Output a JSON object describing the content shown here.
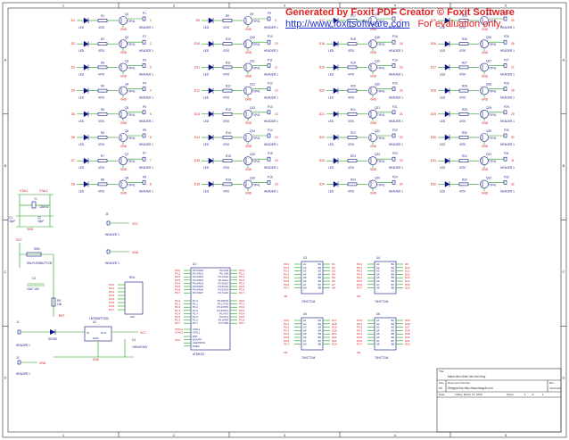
{
  "watermark": {
    "line1": "Generated by Foxit PDF Creator © Foxit Software",
    "line2_url": "http://www.foxitsoftware.com",
    "line2_note": "For evaluation only."
  },
  "grid": {
    "columns": [
      {
        "rows": [
          {
            "q": "Q1",
            "r": "R1",
            "d": "D1",
            "p": "P1",
            "val": "4700",
            "led": "LED",
            "tr": "TIP41",
            "hdr": "HEADER 1",
            "gnd": "GND"
          },
          {
            "q": "Q2",
            "r": "R2",
            "d": "D2",
            "p": "P2",
            "val": "4700",
            "led": "LED",
            "tr": "TIP41",
            "hdr": "HEADER 1",
            "gnd": "GND"
          },
          {
            "q": "Q3",
            "r": "R3",
            "d": "D3",
            "p": "P3",
            "val": "4700",
            "led": "LED",
            "tr": "TIP41",
            "hdr": "HEADER 1",
            "gnd": "GND"
          },
          {
            "q": "Q4",
            "r": "R4",
            "d": "D4",
            "p": "P4",
            "val": "4700",
            "led": "LED",
            "tr": "TIP41",
            "hdr": "HEADER 1",
            "gnd": "GND"
          },
          {
            "q": "Q5",
            "r": "R5",
            "d": "D5",
            "p": "P5",
            "val": "4700",
            "led": "LED",
            "tr": "TIP41",
            "hdr": "HEADER 1",
            "gnd": "GND"
          },
          {
            "q": "Q6",
            "r": "R6",
            "d": "D6",
            "p": "P6",
            "val": "4700",
            "led": "LED",
            "tr": "TIP41",
            "hdr": "HEADER 1",
            "gnd": "GND"
          },
          {
            "q": "Q7",
            "r": "R7",
            "d": "D7",
            "p": "P7",
            "val": "4700",
            "led": "LED",
            "tr": "TIP41",
            "hdr": "HEADER 1",
            "gnd": "GND"
          },
          {
            "q": "Q8",
            "r": "R8",
            "d": "D8",
            "p": "P8",
            "val": "4700",
            "led": "LED",
            "tr": "TIP41",
            "hdr": "HEADER 1",
            "gnd": "GND"
          }
        ]
      },
      {
        "rows": [
          {
            "q": "Q9",
            "r": "R9",
            "d": "D9",
            "p": "P9",
            "val": "4700",
            "led": "LED",
            "tr": "TIP41",
            "hdr": "HEADER 1",
            "gnd": "GND"
          },
          {
            "q": "Q10",
            "r": "R10",
            "d": "D10",
            "p": "P10",
            "val": "4700",
            "led": "LED",
            "tr": "TIP41",
            "hdr": "HEADER 1",
            "gnd": "GND"
          },
          {
            "q": "Q11",
            "r": "R11",
            "d": "D11",
            "p": "P11",
            "val": "4700",
            "led": "LED",
            "tr": "TIP41",
            "hdr": "HEADER 1",
            "gnd": "GND"
          },
          {
            "q": "Q12",
            "r": "R12",
            "d": "D12",
            "p": "P12",
            "val": "4700",
            "led": "LED",
            "tr": "TIP41",
            "hdr": "HEADER 1",
            "gnd": "GND"
          },
          {
            "q": "Q13",
            "r": "R13",
            "d": "D13",
            "p": "P13",
            "val": "4700",
            "led": "LED",
            "tr": "TIP41",
            "hdr": "HEADER 1",
            "gnd": "GND"
          },
          {
            "q": "Q14",
            "r": "R14",
            "d": "D14",
            "p": "P14",
            "val": "4700",
            "led": "LED",
            "tr": "TIP41",
            "hdr": "HEADER 1",
            "gnd": "GND"
          },
          {
            "q": "Q15",
            "r": "R15",
            "d": "D15",
            "p": "P15",
            "val": "4700",
            "led": "LED",
            "tr": "TIP41",
            "hdr": "HEADER 1",
            "gnd": "GND"
          },
          {
            "q": "Q16",
            "r": "R16",
            "d": "D16",
            "p": "P16",
            "val": "4700",
            "led": "LED",
            "tr": "TIP41",
            "hdr": "HEADER 1",
            "gnd": "GND"
          }
        ]
      },
      {
        "rows": [
          {
            "q": "Q17",
            "r": "R17",
            "d": "D17",
            "p": "P17",
            "val": "4700",
            "led": "LED",
            "tr": "TIP41",
            "hdr": "HEADER 1",
            "gnd": "GND"
          },
          {
            "q": "Q18",
            "r": "R18",
            "d": "D18",
            "p": "P18",
            "val": "4700",
            "led": "LED",
            "tr": "TIP41",
            "hdr": "HEADER 1",
            "gnd": "GND"
          },
          {
            "q": "Q19",
            "r": "R19",
            "d": "D19",
            "p": "P19",
            "val": "4700",
            "led": "LED",
            "tr": "TIP41",
            "hdr": "HEADER 1",
            "gnd": "GND"
          },
          {
            "q": "Q20",
            "r": "R20",
            "d": "D20",
            "p": "P20",
            "val": "4700",
            "led": "LED",
            "tr": "TIP41",
            "hdr": "HEADER 1",
            "gnd": "GND"
          },
          {
            "q": "Q21",
            "r": "R21",
            "d": "D21",
            "p": "P21",
            "val": "4700",
            "led": "LED",
            "tr": "TIP41",
            "hdr": "HEADER 1",
            "gnd": "GND"
          },
          {
            "q": "Q22",
            "r": "R22",
            "d": "D22",
            "p": "P22",
            "val": "4700",
            "led": "LED",
            "tr": "TIP41",
            "hdr": "HEADER 1",
            "gnd": "GND"
          },
          {
            "q": "Q23",
            "r": "R23",
            "d": "D23",
            "p": "P23",
            "val": "4700",
            "led": "LED",
            "tr": "TIP41",
            "hdr": "HEADER 1",
            "gnd": "GND"
          },
          {
            "q": "Q24",
            "r": "R24",
            "d": "D24",
            "p": "P24",
            "val": "4700",
            "led": "LED",
            "tr": "TIP41",
            "hdr": "HEADER 1",
            "gnd": "GND"
          }
        ]
      },
      {
        "rows": [
          {
            "q": "Q25",
            "r": "R25",
            "d": "D25",
            "p": "P25",
            "val": "4700",
            "led": "LED",
            "tr": "TIP41",
            "hdr": "HEADER 1",
            "gnd": "GND"
          },
          {
            "q": "Q26",
            "r": "R26",
            "d": "D26",
            "p": "P26",
            "val": "4700",
            "led": "LED",
            "tr": "TIP41",
            "hdr": "HEADER 1",
            "gnd": "GND"
          },
          {
            "q": "Q27",
            "r": "R27",
            "d": "D27",
            "p": "P27",
            "val": "4700",
            "led": "LED",
            "tr": "TIP41",
            "hdr": "HEADER 1",
            "gnd": "GND"
          },
          {
            "q": "Q28",
            "r": "R28",
            "d": "D28",
            "p": "P28",
            "val": "4700",
            "led": "LED",
            "tr": "TIP41",
            "hdr": "HEADER 1",
            "gnd": "GND"
          },
          {
            "q": "Q29",
            "r": "R29",
            "d": "D29",
            "p": "P29",
            "val": "4700",
            "led": "LED",
            "tr": "TIP41",
            "hdr": "HEADER 1",
            "gnd": "GND"
          },
          {
            "q": "Q30",
            "r": "R30",
            "d": "D30",
            "p": "P30",
            "val": "4700",
            "led": "LED",
            "tr": "TIP41",
            "hdr": "HEADER 1",
            "gnd": "GND"
          },
          {
            "q": "Q31",
            "r": "R31",
            "d": "D31",
            "p": "P31",
            "val": "4700",
            "led": "LED",
            "tr": "TIP41",
            "hdr": "HEADER 1",
            "gnd": "GND"
          },
          {
            "q": "Q32",
            "r": "R32",
            "d": "D32",
            "p": "P32",
            "val": "4700",
            "led": "LED",
            "tr": "TIP41",
            "hdr": "HEADER 1",
            "gnd": "GND"
          }
        ]
      }
    ]
  },
  "crystal": {
    "x1": "XTAL1",
    "x2": "XTAL2",
    "y": "Y1",
    "freq": "12MHZ",
    "c1": "C1",
    "c1v": "33pF",
    "c2": "C2",
    "c2v": "33pF",
    "gnd": "GND"
  },
  "headers_mid": {
    "j_label": "J2",
    "hdr1": "HEADER 1",
    "hdr2": "HEADER 1",
    "j1": "J3",
    "vcc": "VCC",
    "gnd": "GND"
  },
  "reset": {
    "vcc": "VCC",
    "sw": "SW1",
    "sw_label": "SW-PUSHBUTTON",
    "c": "C3",
    "cv": "10uF 16V",
    "r": "R9",
    "rv": "10k",
    "rst": "RST"
  },
  "rnet": {
    "label": "RN1",
    "pins": [
      "P0.0",
      "P0.1",
      "P0.2",
      "P0.3",
      "P0.4",
      "P0.5",
      "P0.6",
      "P0.7"
    ],
    "val": "10K"
  },
  "power": {
    "j": "J1",
    "hdr": "HEADER 1",
    "hdr2": "HEADER 1",
    "diode": "DIODE",
    "reg": "U2",
    "reg_name": "LM7805/TO220",
    "in": "IN",
    "out": "OUT",
    "gnd": "GND",
    "c": "C4",
    "cv": "1000uF/16V",
    "vin": "VCC",
    "j2": "J2"
  },
  "mcu": {
    "ref": "U1",
    "name": "AT89C51",
    "left_p0": [
      "P0.0",
      "P0.1",
      "P0.2",
      "P0.3",
      "P0.4",
      "P0.5",
      "P0.6",
      "P0.7"
    ],
    "left_p0_names": [
      "P0.0/AD0",
      "P0.1/AD1",
      "P0.2/AD2",
      "P0.3/AD3",
      "P0.4/AD4",
      "P0.5/AD5",
      "P0.6/AD6",
      "P0.7/AD7"
    ],
    "right_p2_names": [
      "P2.0/A8",
      "P2.1/A9",
      "P2.2/A10",
      "P2.3/A11",
      "P2.4/A12",
      "P2.5/A13",
      "P2.6/A14",
      "P2.7/A15"
    ],
    "right_p2": [
      "P2.0",
      "P2.1",
      "P2.2",
      "P2.3",
      "P2.4",
      "P2.5",
      "P2.6",
      "P2.7"
    ],
    "left_p1": [
      "P1.0",
      "P1.1",
      "P1.2",
      "P1.3",
      "P1.4",
      "P1.5",
      "P1.6",
      "P1.7"
    ],
    "right_p3_names": [
      "P3.0/RXD",
      "P3.1/TXD",
      "P3.2/INT0",
      "P3.3/INT1",
      "P3.4/T0",
      "P3.5/T1",
      "P3.6/WR",
      "P3.7/RD"
    ],
    "right_p3": [
      "P3.0",
      "P3.1",
      "P3.2",
      "P3.3",
      "P3.4",
      "P3.5",
      "P3.6",
      "P3.7"
    ],
    "xtal": [
      "XTAL1",
      "XTAL2"
    ],
    "misc": [
      "RST",
      "EA/VPP",
      "ALE/PROG",
      "PSEN"
    ],
    "vcc": "VCC"
  },
  "buffers": [
    {
      "ref": "U3",
      "name": "74HCT244",
      "in": [
        "P0.0",
        "P0.1",
        "P0.2",
        "P0.3",
        "P0.4",
        "P0.5",
        "P0.6",
        "P0.7"
      ],
      "out": [
        "D1",
        "D2",
        "D3",
        "D4",
        "D5",
        "D6",
        "D7",
        "D8"
      ],
      "oe": "OE",
      "pinsA": [
        "A1",
        "A2",
        "A3",
        "A4",
        "A5",
        "A6",
        "A7",
        "A8"
      ],
      "pinsB": [
        "B1",
        "B2",
        "B3",
        "B4",
        "B5",
        "B6",
        "B7",
        "B8"
      ]
    },
    {
      "ref": "U4",
      "name": "74HCT244",
      "in": [
        "P0.0",
        "P0.1",
        "P0.2",
        "P0.3",
        "P0.4",
        "P0.5",
        "P0.6",
        "P0.7"
      ],
      "out": [
        "D9",
        "D10",
        "D11",
        "D12",
        "D13",
        "D14",
        "D15",
        "D16"
      ],
      "oe": "OE",
      "pinsA": [
        "A1",
        "A2",
        "A3",
        "A4",
        "A5",
        "A6",
        "A7",
        "A8"
      ],
      "pinsB": [
        "B1",
        "B2",
        "B3",
        "B4",
        "B5",
        "B6",
        "B7",
        "B8"
      ]
    },
    {
      "ref": "U5",
      "name": "74HCT244",
      "in": [
        "P0.0",
        "P0.1",
        "P0.2",
        "P0.3",
        "P0.4",
        "P0.5",
        "P0.6",
        "P0.7"
      ],
      "out": [
        "D17",
        "D18",
        "D19",
        "D20",
        "D21",
        "D22",
        "D23",
        "D24"
      ],
      "oe": "OE",
      "pinsA": [
        "A1",
        "A2",
        "A3",
        "A4",
        "A5",
        "A6",
        "A7",
        "A8"
      ],
      "pinsB": [
        "B1",
        "B2",
        "B3",
        "B4",
        "B5",
        "B6",
        "B7",
        "B8"
      ]
    },
    {
      "ref": "U6",
      "name": "74HCT244",
      "in": [
        "P0.0",
        "P0.1",
        "P0.2",
        "P0.3",
        "P0.4",
        "P0.5",
        "P0.6",
        "P0.7"
      ],
      "out": [
        "D25",
        "D26",
        "D27",
        "D28",
        "D29",
        "D30",
        "D31",
        "D32"
      ],
      "oe": "OE",
      "pinsA": [
        "A1",
        "A2",
        "A3",
        "A4",
        "A5",
        "A6",
        "A7",
        "A8"
      ],
      "pinsB": [
        "B1",
        "B2",
        "B3",
        "B4",
        "B5",
        "B6",
        "B7",
        "B8"
      ]
    }
  ],
  "titleblock": {
    "title_label": "Title",
    "title": "Mach dieu khien den led nhay",
    "size_label": "Size",
    "size": "A4",
    "docnum_label": "Document Number",
    "docnum": "Designed by http://www.laogc6.com",
    "rev_label": "Rev",
    "rev": "<RevCode>",
    "date_label": "Date:",
    "date": "Friday, March 13, 2009",
    "sheet_label": "Sheet",
    "sheet": "1",
    "of_label": "of",
    "of": "1"
  },
  "border": {
    "cols": [
      "1",
      "2",
      "3",
      "4",
      "5"
    ],
    "rows": [
      "A",
      "B",
      "C",
      "D"
    ]
  },
  "colors": {
    "wire": "#1a9a1a",
    "part": "#101080",
    "label": "#d01010",
    "border": "#303030",
    "text": "#1a1a80"
  }
}
